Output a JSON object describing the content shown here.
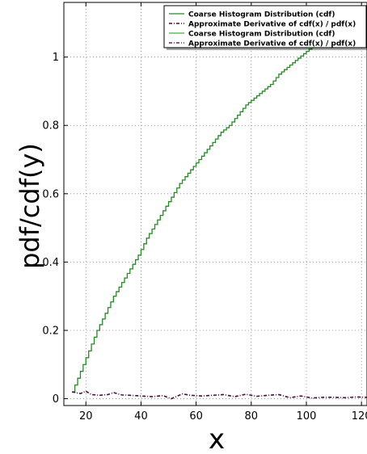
{
  "chart_data": {
    "type": "line",
    "title": "",
    "xlabel": "x",
    "ylabel": "pdf/cdf(y)",
    "xlim": [
      12,
      122
    ],
    "ylim": [
      -0.02,
      1.16
    ],
    "xticks": [
      20,
      40,
      60,
      80,
      100,
      120
    ],
    "yticks": [
      0,
      0.2,
      0.4,
      0.6,
      0.8,
      1
    ],
    "xtick_labels": [
      "20",
      "40",
      "60",
      "80",
      "100",
      "120"
    ],
    "ytick_labels": [
      "0",
      "0.2",
      "0.4",
      "0.6",
      "0.8",
      "1"
    ],
    "grid": true,
    "legend_position": "top-right",
    "series": [
      {
        "name": "Coarse Histogram Distribution (cdf)",
        "color": "#228b22",
        "style": "step",
        "x": [
          15,
          18,
          21,
          24,
          27,
          30,
          33,
          36,
          39,
          42,
          45,
          48,
          51,
          54,
          57,
          60,
          63,
          66,
          69,
          72,
          75,
          78,
          81,
          84,
          87,
          90,
          93,
          96,
          99,
          102,
          105
        ],
        "y": [
          0.02,
          0.08,
          0.14,
          0.2,
          0.25,
          0.3,
          0.34,
          0.38,
          0.42,
          0.47,
          0.51,
          0.55,
          0.59,
          0.63,
          0.66,
          0.69,
          0.72,
          0.75,
          0.78,
          0.8,
          0.83,
          0.86,
          0.88,
          0.9,
          0.92,
          0.95,
          0.97,
          0.99,
          1.01,
          1.03,
          1.05
        ]
      },
      {
        "name": "Approximate Derivative of cdf(x) / pdf(x)",
        "color": "#4b0a3a",
        "style": "dashdot",
        "x": [
          15,
          18,
          20,
          22,
          25,
          28,
          30,
          33,
          36,
          40,
          44,
          48,
          51,
          55,
          58,
          62,
          66,
          70,
          74,
          78,
          82,
          86,
          90,
          94,
          98,
          102,
          106,
          110,
          114,
          118,
          122
        ],
        "y": [
          0.02,
          0.015,
          0.022,
          0.012,
          0.01,
          0.012,
          0.018,
          0.011,
          0.01,
          0.008,
          0.006,
          0.009,
          0.0,
          0.014,
          0.01,
          0.008,
          0.01,
          0.012,
          0.006,
          0.013,
          0.007,
          0.01,
          0.012,
          0.003,
          0.008,
          0.002,
          0.004,
          0.004,
          0.003,
          0.005,
          0.004
        ]
      },
      {
        "name": "Coarse Histogram Distribution (cdf)",
        "color": "#3cb33c",
        "style": "legend-only",
        "x": [],
        "y": []
      },
      {
        "name": "Approximate Derivative of cdf(x) / pdf(x)",
        "color": "#7a1f6b",
        "style": "legend-only",
        "x": [],
        "y": []
      }
    ]
  }
}
